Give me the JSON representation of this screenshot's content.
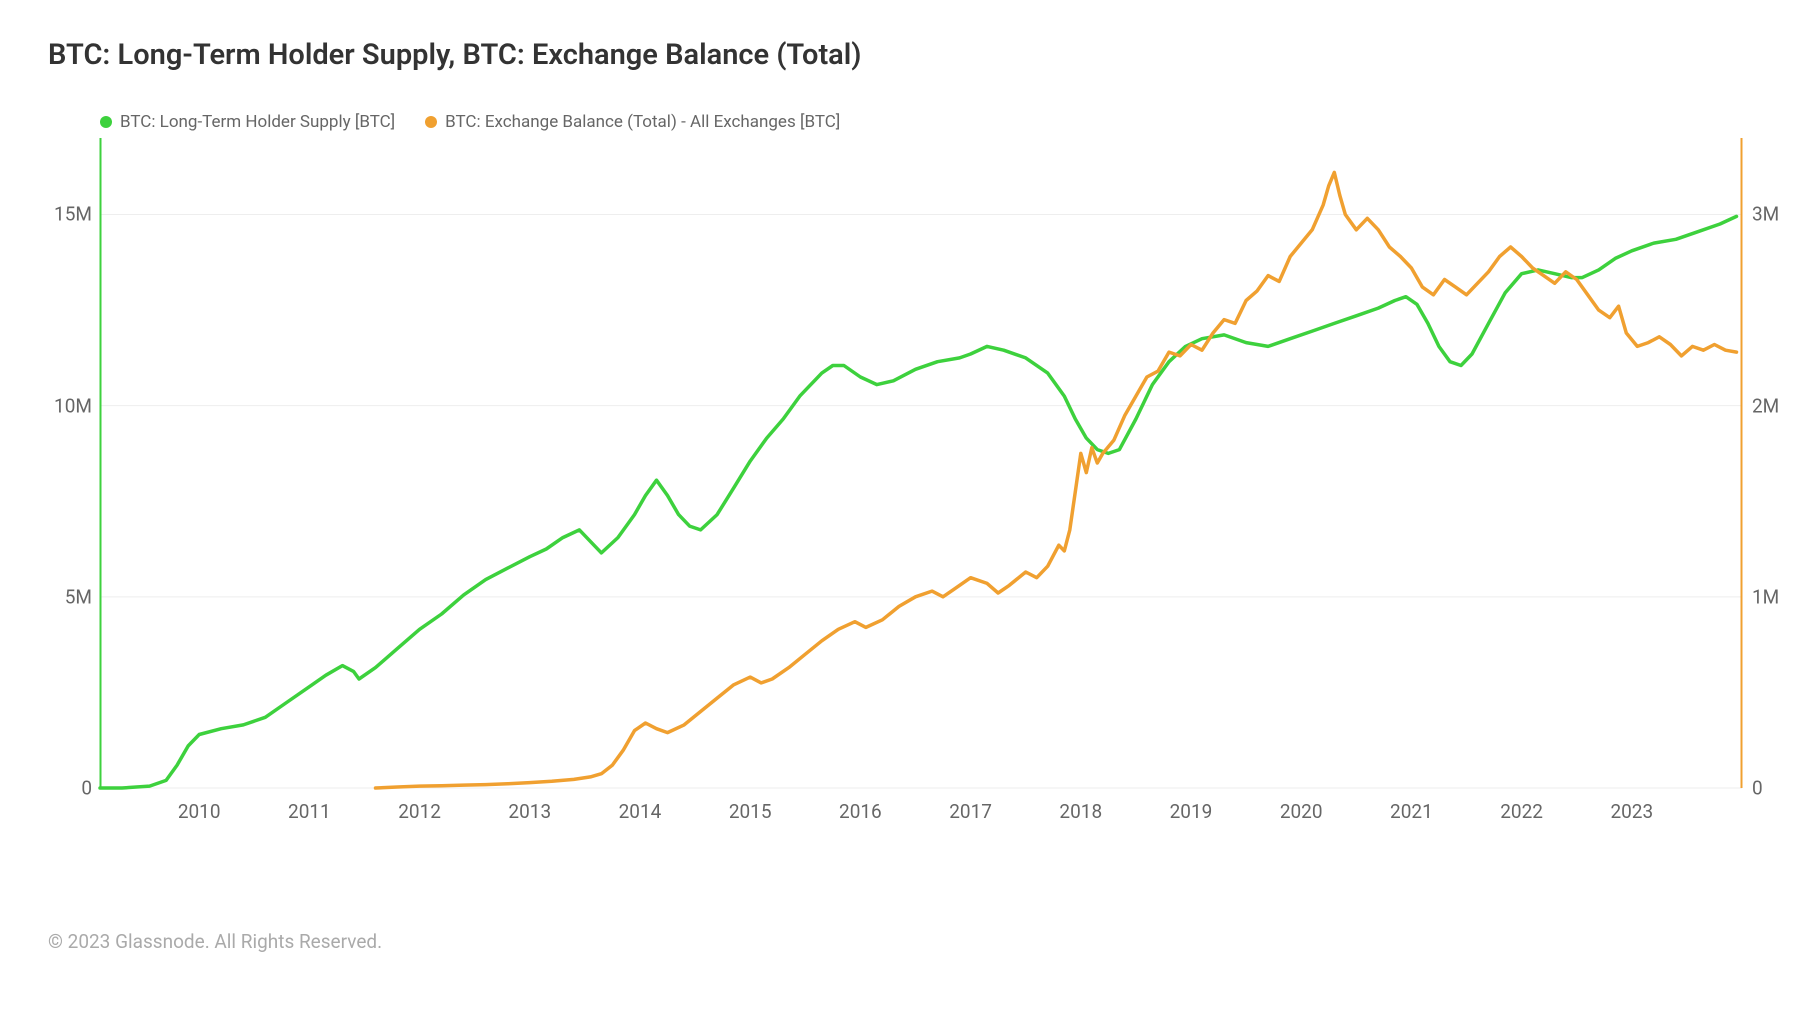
{
  "title": "BTC: Long-Term Holder Supply, BTC: Exchange Balance (Total)",
  "footer": "© 2023 Glassnode. All Rights Reserved.",
  "chart": {
    "type": "line",
    "background_color": "#ffffff",
    "grid_color": "#eeeeee",
    "font_family": "-apple-system, sans-serif",
    "title_fontsize": 29,
    "tick_fontsize": 19,
    "legend_fontsize": 17,
    "line_width": 3.5,
    "x": {
      "min": 2009.1,
      "max": 2024.0,
      "ticks": [
        2010,
        2011,
        2012,
        2013,
        2014,
        2015,
        2016,
        2017,
        2018,
        2019,
        2020,
        2021,
        2022,
        2023
      ],
      "tick_labels": [
        "2010",
        "2011",
        "2012",
        "2013",
        "2014",
        "2015",
        "2016",
        "2017",
        "2018",
        "2019",
        "2020",
        "2021",
        "2022",
        "2023"
      ]
    },
    "y_left": {
      "min": 0,
      "max": 17000000,
      "ticks": [
        0,
        5000000,
        10000000,
        15000000
      ],
      "tick_labels": [
        "0",
        "5M",
        "10M",
        "15M"
      ],
      "color": "#3dd13d"
    },
    "y_right": {
      "min": 0,
      "max": 3400000,
      "ticks": [
        0,
        1000000,
        2000000,
        3000000
      ],
      "tick_labels": [
        "0",
        "1M",
        "2M",
        "3M"
      ],
      "color": "#f0a030"
    },
    "series": [
      {
        "name": "BTC: Long-Term Holder Supply [BTC]",
        "color": "#3dd13d",
        "axis": "left",
        "data": [
          [
            2009.1,
            0
          ],
          [
            2009.3,
            0
          ],
          [
            2009.55,
            50000
          ],
          [
            2009.7,
            200000
          ],
          [
            2009.8,
            600000
          ],
          [
            2009.9,
            1100000
          ],
          [
            2010.0,
            1400000
          ],
          [
            2010.2,
            1550000
          ],
          [
            2010.4,
            1650000
          ],
          [
            2010.6,
            1850000
          ],
          [
            2010.8,
            2250000
          ],
          [
            2011.0,
            2650000
          ],
          [
            2011.15,
            2950000
          ],
          [
            2011.3,
            3200000
          ],
          [
            2011.4,
            3050000
          ],
          [
            2011.45,
            2850000
          ],
          [
            2011.6,
            3150000
          ],
          [
            2011.8,
            3650000
          ],
          [
            2012.0,
            4150000
          ],
          [
            2012.2,
            4550000
          ],
          [
            2012.4,
            5050000
          ],
          [
            2012.6,
            5450000
          ],
          [
            2012.8,
            5750000
          ],
          [
            2013.0,
            6050000
          ],
          [
            2013.15,
            6250000
          ],
          [
            2013.3,
            6550000
          ],
          [
            2013.45,
            6750000
          ],
          [
            2013.55,
            6450000
          ],
          [
            2013.65,
            6150000
          ],
          [
            2013.8,
            6550000
          ],
          [
            2013.95,
            7150000
          ],
          [
            2014.05,
            7650000
          ],
          [
            2014.15,
            8050000
          ],
          [
            2014.25,
            7650000
          ],
          [
            2014.35,
            7150000
          ],
          [
            2014.45,
            6850000
          ],
          [
            2014.55,
            6750000
          ],
          [
            2014.7,
            7150000
          ],
          [
            2014.85,
            7850000
          ],
          [
            2015.0,
            8550000
          ],
          [
            2015.15,
            9150000
          ],
          [
            2015.3,
            9650000
          ],
          [
            2015.45,
            10250000
          ],
          [
            2015.55,
            10550000
          ],
          [
            2015.65,
            10850000
          ],
          [
            2015.75,
            11050000
          ],
          [
            2015.85,
            11050000
          ],
          [
            2016.0,
            10750000
          ],
          [
            2016.15,
            10550000
          ],
          [
            2016.3,
            10650000
          ],
          [
            2016.5,
            10950000
          ],
          [
            2016.7,
            11150000
          ],
          [
            2016.9,
            11250000
          ],
          [
            2017.0,
            11350000
          ],
          [
            2017.15,
            11550000
          ],
          [
            2017.3,
            11450000
          ],
          [
            2017.5,
            11250000
          ],
          [
            2017.7,
            10850000
          ],
          [
            2017.85,
            10250000
          ],
          [
            2017.95,
            9650000
          ],
          [
            2018.05,
            9150000
          ],
          [
            2018.15,
            8850000
          ],
          [
            2018.25,
            8750000
          ],
          [
            2018.35,
            8850000
          ],
          [
            2018.5,
            9650000
          ],
          [
            2018.65,
            10550000
          ],
          [
            2018.8,
            11150000
          ],
          [
            2018.95,
            11550000
          ],
          [
            2019.1,
            11750000
          ],
          [
            2019.3,
            11850000
          ],
          [
            2019.5,
            11650000
          ],
          [
            2019.7,
            11550000
          ],
          [
            2019.9,
            11750000
          ],
          [
            2020.1,
            11950000
          ],
          [
            2020.3,
            12150000
          ],
          [
            2020.5,
            12350000
          ],
          [
            2020.7,
            12550000
          ],
          [
            2020.85,
            12750000
          ],
          [
            2020.95,
            12850000
          ],
          [
            2021.05,
            12650000
          ],
          [
            2021.15,
            12150000
          ],
          [
            2021.25,
            11550000
          ],
          [
            2021.35,
            11150000
          ],
          [
            2021.45,
            11050000
          ],
          [
            2021.55,
            11350000
          ],
          [
            2021.7,
            12150000
          ],
          [
            2021.85,
            12950000
          ],
          [
            2022.0,
            13450000
          ],
          [
            2022.15,
            13550000
          ],
          [
            2022.3,
            13450000
          ],
          [
            2022.45,
            13350000
          ],
          [
            2022.55,
            13350000
          ],
          [
            2022.7,
            13550000
          ],
          [
            2022.85,
            13850000
          ],
          [
            2023.0,
            14050000
          ],
          [
            2023.2,
            14250000
          ],
          [
            2023.4,
            14350000
          ],
          [
            2023.6,
            14550000
          ],
          [
            2023.8,
            14750000
          ],
          [
            2023.95,
            14950000
          ]
        ]
      },
      {
        "name": "BTC: Exchange Balance (Total) - All Exchanges [BTC]",
        "color": "#f0a030",
        "axis": "right",
        "data": [
          [
            2011.6,
            0
          ],
          [
            2011.8,
            5000
          ],
          [
            2012.0,
            10000
          ],
          [
            2012.2,
            12000
          ],
          [
            2012.4,
            15000
          ],
          [
            2012.6,
            18000
          ],
          [
            2012.8,
            22000
          ],
          [
            2013.0,
            28000
          ],
          [
            2013.2,
            35000
          ],
          [
            2013.4,
            45000
          ],
          [
            2013.55,
            58000
          ],
          [
            2013.65,
            75000
          ],
          [
            2013.75,
            120000
          ],
          [
            2013.85,
            200000
          ],
          [
            2013.95,
            300000
          ],
          [
            2014.05,
            340000
          ],
          [
            2014.15,
            310000
          ],
          [
            2014.25,
            290000
          ],
          [
            2014.4,
            330000
          ],
          [
            2014.55,
            400000
          ],
          [
            2014.7,
            470000
          ],
          [
            2014.85,
            540000
          ],
          [
            2015.0,
            580000
          ],
          [
            2015.1,
            550000
          ],
          [
            2015.2,
            570000
          ],
          [
            2015.35,
            630000
          ],
          [
            2015.5,
            700000
          ],
          [
            2015.65,
            770000
          ],
          [
            2015.8,
            830000
          ],
          [
            2015.95,
            870000
          ],
          [
            2016.05,
            840000
          ],
          [
            2016.2,
            880000
          ],
          [
            2016.35,
            950000
          ],
          [
            2016.5,
            1000000
          ],
          [
            2016.65,
            1030000
          ],
          [
            2016.75,
            1000000
          ],
          [
            2016.85,
            1040000
          ],
          [
            2017.0,
            1100000
          ],
          [
            2017.15,
            1070000
          ],
          [
            2017.25,
            1020000
          ],
          [
            2017.35,
            1060000
          ],
          [
            2017.5,
            1130000
          ],
          [
            2017.6,
            1100000
          ],
          [
            2017.7,
            1160000
          ],
          [
            2017.8,
            1270000
          ],
          [
            2017.85,
            1240000
          ],
          [
            2017.9,
            1350000
          ],
          [
            2017.95,
            1550000
          ],
          [
            2018.0,
            1750000
          ],
          [
            2018.05,
            1650000
          ],
          [
            2018.1,
            1780000
          ],
          [
            2018.15,
            1700000
          ],
          [
            2018.2,
            1750000
          ],
          [
            2018.3,
            1820000
          ],
          [
            2018.4,
            1950000
          ],
          [
            2018.5,
            2050000
          ],
          [
            2018.6,
            2150000
          ],
          [
            2018.7,
            2180000
          ],
          [
            2018.8,
            2280000
          ],
          [
            2018.9,
            2260000
          ],
          [
            2019.0,
            2320000
          ],
          [
            2019.1,
            2290000
          ],
          [
            2019.2,
            2380000
          ],
          [
            2019.3,
            2450000
          ],
          [
            2019.4,
            2430000
          ],
          [
            2019.5,
            2550000
          ],
          [
            2019.6,
            2600000
          ],
          [
            2019.7,
            2680000
          ],
          [
            2019.8,
            2650000
          ],
          [
            2019.9,
            2780000
          ],
          [
            2020.0,
            2850000
          ],
          [
            2020.1,
            2920000
          ],
          [
            2020.2,
            3050000
          ],
          [
            2020.25,
            3150000
          ],
          [
            2020.3,
            3220000
          ],
          [
            2020.35,
            3100000
          ],
          [
            2020.4,
            3000000
          ],
          [
            2020.5,
            2920000
          ],
          [
            2020.6,
            2980000
          ],
          [
            2020.7,
            2920000
          ],
          [
            2020.8,
            2830000
          ],
          [
            2020.9,
            2780000
          ],
          [
            2021.0,
            2720000
          ],
          [
            2021.1,
            2620000
          ],
          [
            2021.2,
            2580000
          ],
          [
            2021.3,
            2660000
          ],
          [
            2021.4,
            2620000
          ],
          [
            2021.5,
            2580000
          ],
          [
            2021.6,
            2640000
          ],
          [
            2021.7,
            2700000
          ],
          [
            2021.8,
            2780000
          ],
          [
            2021.9,
            2830000
          ],
          [
            2022.0,
            2780000
          ],
          [
            2022.1,
            2720000
          ],
          [
            2022.2,
            2680000
          ],
          [
            2022.3,
            2640000
          ],
          [
            2022.4,
            2700000
          ],
          [
            2022.5,
            2660000
          ],
          [
            2022.6,
            2580000
          ],
          [
            2022.7,
            2500000
          ],
          [
            2022.8,
            2460000
          ],
          [
            2022.88,
            2520000
          ],
          [
            2022.95,
            2380000
          ],
          [
            2023.05,
            2310000
          ],
          [
            2023.15,
            2330000
          ],
          [
            2023.25,
            2360000
          ],
          [
            2023.35,
            2320000
          ],
          [
            2023.45,
            2260000
          ],
          [
            2023.55,
            2310000
          ],
          [
            2023.65,
            2290000
          ],
          [
            2023.75,
            2320000
          ],
          [
            2023.85,
            2290000
          ],
          [
            2023.95,
            2280000
          ]
        ]
      }
    ]
  }
}
